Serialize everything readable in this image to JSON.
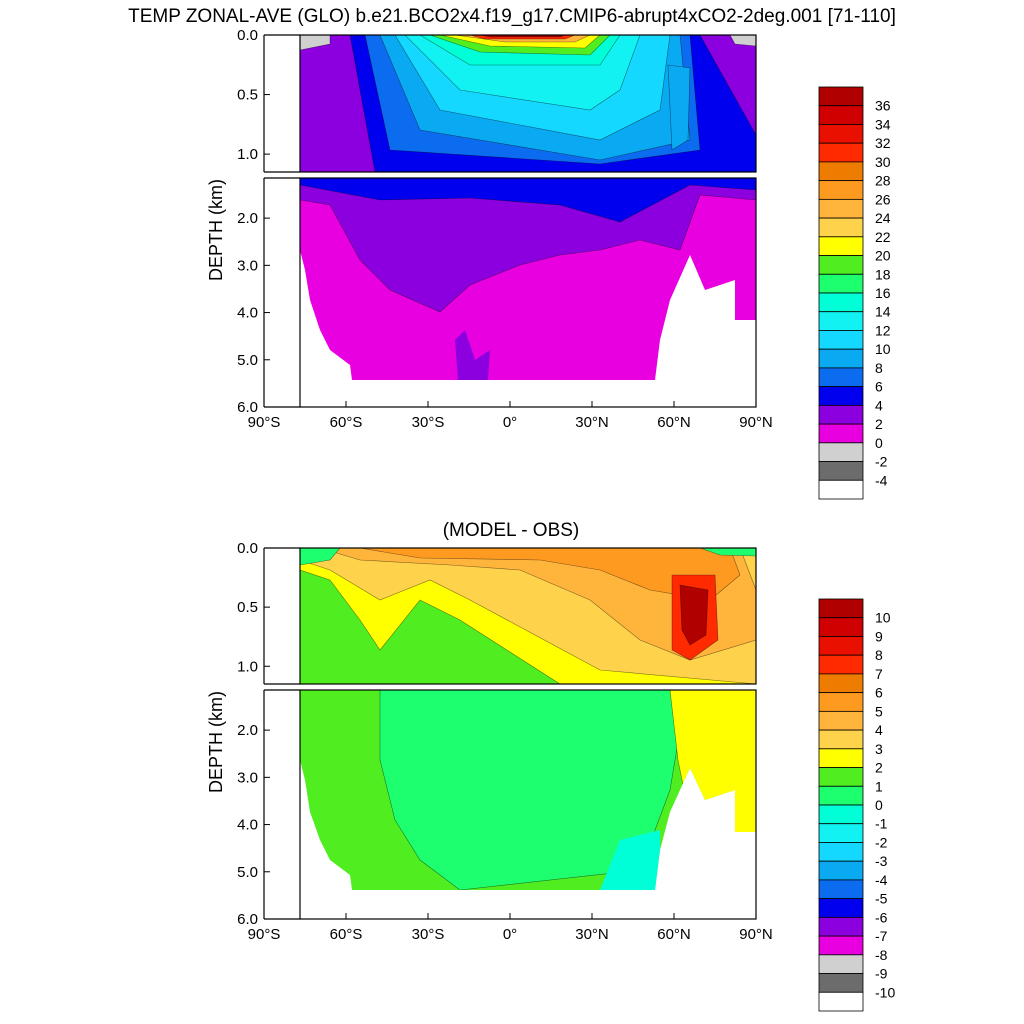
{
  "title": "TEMP ZONAL-AVE (GLO) b.e21.BCO2x4.f19_g17.CMIP6-abrupt4xCO2-2deg.001 [71-110]",
  "chart_data": [
    {
      "type": "heatmap",
      "title": "TEMP ZONAL-AVE (GLO) b.e21.BCO2x4.f19_g17.CMIP6-abrupt4xCO2-2deg.001 [71-110]",
      "xlabel": "",
      "ylabel": "DEPTH (km)",
      "xlim": [
        -90,
        90
      ],
      "ylim_upper": [
        0,
        1.15
      ],
      "ylim_lower": [
        1.15,
        6.0
      ],
      "x_ticks": [
        {
          "value": -90,
          "label": "90°S"
        },
        {
          "value": -60,
          "label": "60°S"
        },
        {
          "value": -30,
          "label": "30°S"
        },
        {
          "value": 0,
          "label": "0°"
        },
        {
          "value": 30,
          "label": "30°N"
        },
        {
          "value": 60,
          "label": "60°N"
        },
        {
          "value": 90,
          "label": "90°N"
        }
      ],
      "y_ticks_upper": [
        {
          "value": 0.0,
          "label": "0.0"
        },
        {
          "value": 0.5,
          "label": "0.5"
        },
        {
          "value": 1.0,
          "label": "1.0"
        }
      ],
      "y_ticks_lower": [
        {
          "value": 2.0,
          "label": "2.0"
        },
        {
          "value": 3.0,
          "label": "3.0"
        },
        {
          "value": 4.0,
          "label": "4.0"
        },
        {
          "value": 5.0,
          "label": "5.0"
        },
        {
          "value": 6.0,
          "label": "6.0"
        }
      ],
      "colorbar": {
        "labels": [
          "36",
          "34",
          "32",
          "30",
          "28",
          "26",
          "24",
          "22",
          "20",
          "18",
          "16",
          "14",
          "12",
          "10",
          "8",
          "6",
          "4",
          "2",
          "0",
          "-2",
          "-4"
        ],
        "colors": [
          "#b00000",
          "#d00000",
          "#ea1000",
          "#ff2a00",
          "#ee7c00",
          "#ff9a20",
          "#ffb43c",
          "#ffd24c",
          "#ffff00",
          "#50ee20",
          "#1eff70",
          "#00ffd6",
          "#12f2f2",
          "#14d8ff",
          "#0aaaf2",
          "#0c6cf0",
          "#0000ee",
          "#8c00e0",
          "#e800e0",
          "#d0d0d0",
          "#6c6c6c",
          "#ffffff"
        ]
      }
    },
    {
      "type": "heatmap",
      "title": "(MODEL - OBS)",
      "xlabel": "",
      "ylabel": "DEPTH (km)",
      "xlim": [
        -90,
        90
      ],
      "ylim_upper": [
        0,
        1.15
      ],
      "ylim_lower": [
        1.15,
        6.0
      ],
      "x_ticks": [
        {
          "value": -90,
          "label": "90°S"
        },
        {
          "value": -60,
          "label": "60°S"
        },
        {
          "value": -30,
          "label": "30°S"
        },
        {
          "value": 0,
          "label": "0°"
        },
        {
          "value": 30,
          "label": "30°N"
        },
        {
          "value": 60,
          "label": "60°N"
        },
        {
          "value": 90,
          "label": "90°N"
        }
      ],
      "y_ticks_upper": [
        {
          "value": 0.0,
          "label": "0.0"
        },
        {
          "value": 0.5,
          "label": "0.5"
        },
        {
          "value": 1.0,
          "label": "1.0"
        }
      ],
      "y_ticks_lower": [
        {
          "value": 2.0,
          "label": "2.0"
        },
        {
          "value": 3.0,
          "label": "3.0"
        },
        {
          "value": 4.0,
          "label": "4.0"
        },
        {
          "value": 5.0,
          "label": "5.0"
        },
        {
          "value": 6.0,
          "label": "6.0"
        }
      ],
      "colorbar": {
        "labels": [
          "10",
          "9",
          "8",
          "7",
          "6",
          "5",
          "4",
          "3",
          "2",
          "1",
          "0",
          "-1",
          "-2",
          "-3",
          "-4",
          "-5",
          "-6",
          "-7",
          "-8",
          "-9",
          "-10"
        ],
        "colors": [
          "#b00000",
          "#d00000",
          "#ea1000",
          "#ff2a00",
          "#ee7c00",
          "#ff9a20",
          "#ffb43c",
          "#ffd24c",
          "#ffff00",
          "#50ee20",
          "#1eff70",
          "#00ffd6",
          "#12f2f2",
          "#14d8ff",
          "#0aaaf2",
          "#0c6cf0",
          "#0000ee",
          "#8c00e0",
          "#e800e0",
          "#d0d0d0",
          "#6c6c6c",
          "#ffffff"
        ]
      }
    }
  ]
}
